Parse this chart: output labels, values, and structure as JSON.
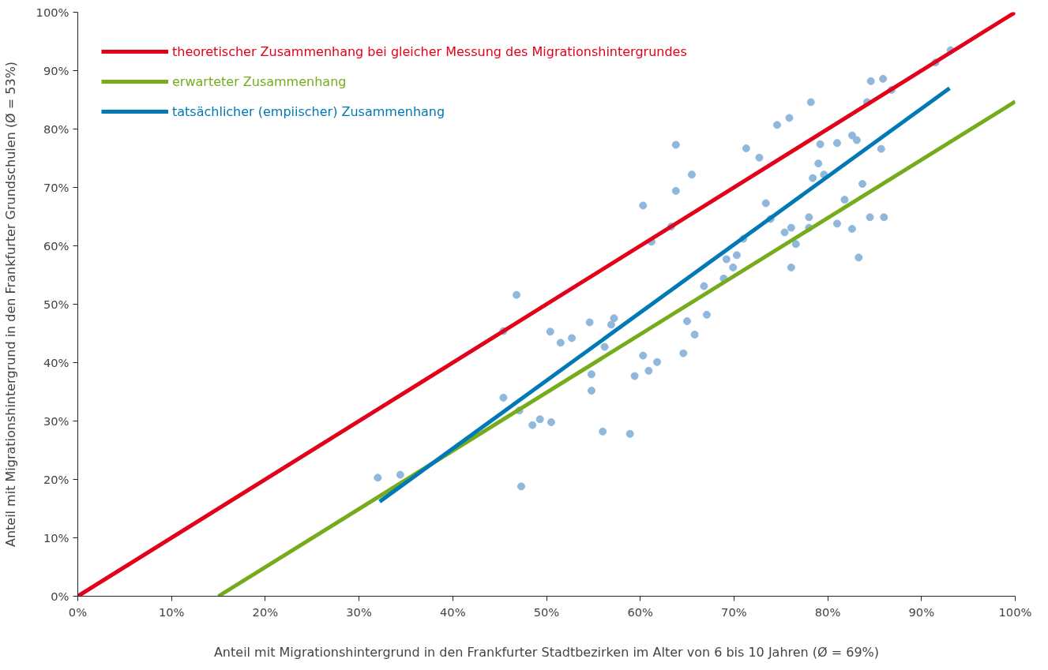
{
  "chart_data": {
    "type": "scatter",
    "xlabel": "Anteil mit Migrationshintergrund in den Frankfurter Stadtbezirken im Alter von 6 bis 10 Jahren (Ø = 69%)",
    "ylabel": "Anteil mit Migrationshintergrund in den Frankfurter Grundschulen (Ø = 53%)",
    "xlim": [
      0,
      100
    ],
    "ylim": [
      0,
      100
    ],
    "xticks": [
      {
        "value": 0,
        "label": "0%"
      },
      {
        "value": 10,
        "label": "10%"
      },
      {
        "value": 20,
        "label": "20%"
      },
      {
        "value": 30,
        "label": "30%"
      },
      {
        "value": 40,
        "label": "40%"
      },
      {
        "value": 50,
        "label": "50%"
      },
      {
        "value": 60,
        "label": "60%"
      },
      {
        "value": 70,
        "label": "70%"
      },
      {
        "value": 80,
        "label": "80%"
      },
      {
        "value": 90,
        "label": "90%"
      },
      {
        "value": 100,
        "label": "100%"
      }
    ],
    "yticks": [
      {
        "value": 0,
        "label": "0%"
      },
      {
        "value": 10,
        "label": "10%"
      },
      {
        "value": 20,
        "label": "20%"
      },
      {
        "value": 30,
        "label": "30%"
      },
      {
        "value": 40,
        "label": "40%"
      },
      {
        "value": 50,
        "label": "50%"
      },
      {
        "value": 60,
        "label": "60%"
      },
      {
        "value": 70,
        "label": "70%"
      },
      {
        "value": 80,
        "label": "80%"
      },
      {
        "value": 90,
        "label": "90%"
      },
      {
        "value": 100,
        "label": "100%"
      }
    ],
    "grid": false,
    "legend": "top left",
    "series": [
      {
        "marker": "circle",
        "color": "#8fb8dc",
        "x": [
          32.0,
          34.4,
          45.4,
          45.4,
          46.8,
          47.1,
          47.3,
          48.5,
          49.3,
          50.5,
          50.4,
          51.5,
          52.7,
          54.6,
          54.8,
          54.8,
          56.0,
          56.2,
          56.9,
          57.2,
          58.9,
          59.4,
          60.3,
          60.3,
          60.9,
          61.2,
          61.8,
          63.3,
          63.8,
          63.8,
          64.6,
          65.0,
          65.5,
          65.8,
          66.8,
          67.1,
          68.9,
          69.2,
          69.9,
          70.3,
          71.0,
          71.3,
          72.7,
          73.4,
          73.9,
          74.6,
          75.4,
          75.9,
          76.1,
          76.1,
          76.6,
          78.0,
          78.0,
          78.2,
          78.4,
          79.0,
          79.2,
          79.6,
          81.0,
          81.0,
          81.8,
          82.6,
          82.6,
          83.1,
          83.3,
          83.7,
          84.2,
          84.5,
          84.6,
          85.7,
          85.9,
          86.0,
          86.8,
          91.5,
          93.1
        ],
        "values": [
          20.3,
          20.8,
          34.0,
          45.4,
          51.6,
          31.8,
          18.8,
          29.3,
          30.3,
          29.8,
          45.3,
          43.4,
          44.2,
          46.9,
          38.0,
          35.2,
          28.2,
          42.7,
          46.5,
          47.6,
          27.8,
          37.7,
          41.2,
          66.9,
          38.6,
          60.7,
          40.1,
          63.3,
          69.4,
          77.3,
          41.6,
          47.1,
          72.2,
          44.8,
          53.1,
          48.2,
          54.4,
          57.7,
          56.3,
          58.4,
          61.2,
          76.7,
          75.1,
          67.3,
          64.6,
          80.7,
          62.3,
          81.9,
          63.1,
          56.3,
          60.3,
          64.9,
          63.1,
          84.6,
          71.6,
          74.1,
          77.4,
          72.2,
          77.6,
          63.8,
          67.9,
          62.9,
          78.9,
          78.1,
          58.0,
          70.6,
          84.6,
          64.9,
          88.2,
          76.6,
          88.6,
          64.9,
          86.7,
          91.4,
          93.5
        ]
      },
      {
        "type": "line",
        "name": "theoretischer Zusammenhang bei gleicher Messung des Migrationshintergrundes",
        "color": "#e2001a",
        "line_style": "solid",
        "x": [
          0,
          100
        ],
        "values": [
          0,
          100
        ]
      },
      {
        "type": "line",
        "name": "erwarteter Zusammenhang",
        "color": "#76ac1c",
        "line_style": "solid",
        "x": [
          15,
          100
        ],
        "values": [
          0,
          84.7
        ]
      },
      {
        "type": "line",
        "name": "tatsächlicher (empiischer) Zusammenhang",
        "color": "#0079b5",
        "line_style": "solid",
        "x": [
          32.2,
          93.0
        ],
        "values": [
          16.2,
          87.0
        ]
      }
    ]
  }
}
